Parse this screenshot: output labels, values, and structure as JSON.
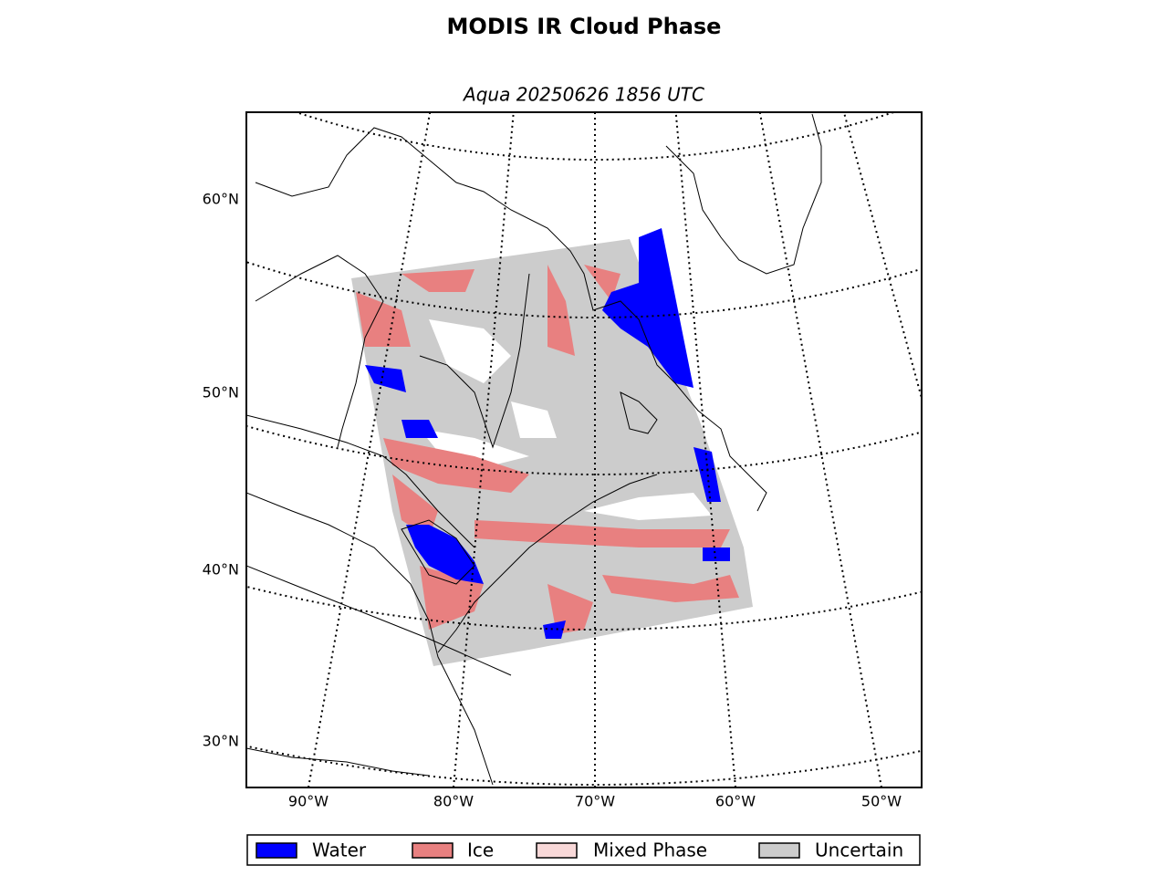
{
  "title": "MODIS IR Cloud Phase",
  "subtitle": "Aqua 20250626 1856 UTC",
  "latitude_labels": [
    "60°N",
    "50°N",
    "40°N",
    "30°N"
  ],
  "longitude_labels": [
    "90°W",
    "80°W",
    "70°W",
    "60°W",
    "50°W"
  ],
  "legend": [
    {
      "label": "Water",
      "color": "#0000ff"
    },
    {
      "label": "Ice",
      "color": "#e88080"
    },
    {
      "label": "Mixed Phase",
      "color": "#f8d8d8"
    },
    {
      "label": "Uncertain",
      "color": "#cccccc"
    }
  ]
}
